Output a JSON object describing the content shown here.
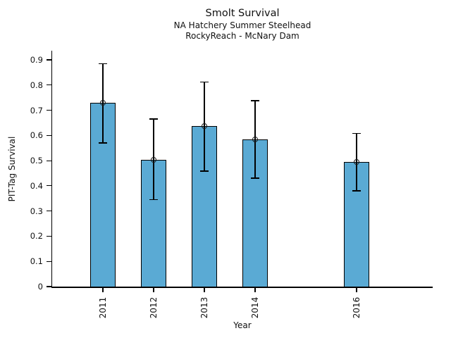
{
  "chart_data": {
    "type": "bar",
    "title": "Smolt Survival",
    "subtitle1": "NA Hatchery Summer Steelhead",
    "subtitle2": "RockyReach - McNary Dam",
    "xlabel": "Year",
    "ylabel": "PIT-Tag Survival",
    "categories": [
      "2011",
      "2012",
      "2013",
      "2014",
      "2016"
    ],
    "values": [
      0.73,
      0.503,
      0.637,
      0.585,
      0.495
    ],
    "error_low": [
      0.57,
      0.345,
      0.458,
      0.43,
      0.38
    ],
    "error_high": [
      0.885,
      0.665,
      0.812,
      0.738,
      0.608
    ],
    "yticks": [
      "0",
      "0.1",
      "0.2",
      "0.3",
      "0.4",
      "0.5",
      "0.6",
      "0.7",
      "0.8",
      "0.9"
    ],
    "x_range": [
      2010,
      2017.5
    ],
    "ylim": [
      0,
      0.9363
    ],
    "grid": false,
    "legend": false,
    "marker": "open-circle",
    "bar_color": "#5AAAD4",
    "edge_color": "#000000",
    "error_color": "#000000"
  }
}
